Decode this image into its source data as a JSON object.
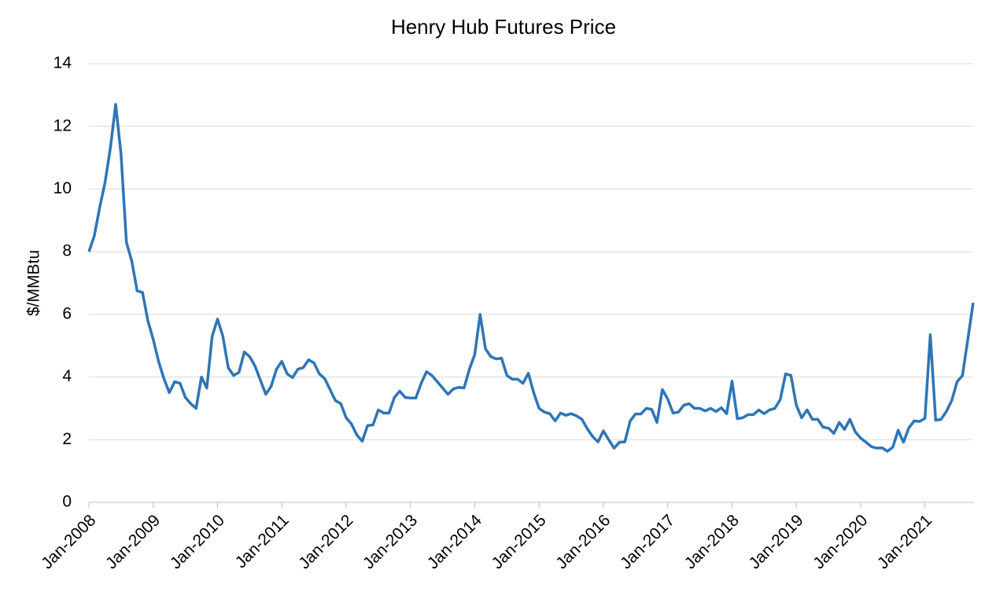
{
  "chart_data": {
    "type": "line",
    "title": "Henry Hub Futures Price",
    "y_label": "$/MMBtu",
    "color": "#2e75b6",
    "grid": true,
    "ylim": [
      0,
      14
    ],
    "yticks": [
      0,
      2,
      4,
      6,
      8,
      10,
      12,
      14
    ],
    "categories": [
      "Jan-2008",
      null,
      null,
      null,
      null,
      null,
      null,
      null,
      null,
      null,
      null,
      null,
      "Jan-2009",
      null,
      null,
      null,
      null,
      null,
      null,
      null,
      null,
      null,
      null,
      null,
      "Jan-2010",
      null,
      null,
      null,
      null,
      null,
      null,
      null,
      null,
      null,
      null,
      null,
      "Jan-2011",
      null,
      null,
      null,
      null,
      null,
      null,
      null,
      null,
      null,
      null,
      null,
      "Jan-2012",
      null,
      null,
      null,
      null,
      null,
      null,
      null,
      null,
      null,
      null,
      null,
      "Jan-2013",
      null,
      null,
      null,
      null,
      null,
      null,
      null,
      null,
      null,
      null,
      null,
      "Jan-2014",
      null,
      null,
      null,
      null,
      null,
      null,
      null,
      null,
      null,
      null,
      null,
      "Jan-2015",
      null,
      null,
      null,
      null,
      null,
      null,
      null,
      null,
      null,
      null,
      null,
      "Jan-2016",
      null,
      null,
      null,
      null,
      null,
      null,
      null,
      null,
      null,
      null,
      null,
      "Jan-2017",
      null,
      null,
      null,
      null,
      null,
      null,
      null,
      null,
      null,
      null,
      null,
      "Jan-2018",
      null,
      null,
      null,
      null,
      null,
      null,
      null,
      null,
      null,
      null,
      null,
      "Jan-2019",
      null,
      null,
      null,
      null,
      null,
      null,
      null,
      null,
      null,
      null,
      null,
      "Jan-2020",
      null,
      null,
      null,
      null,
      null,
      null,
      null,
      null,
      null,
      null,
      null,
      "Jan-2021",
      null,
      null,
      null,
      null,
      null,
      null,
      null,
      null,
      null
    ],
    "values": [
      8.0,
      8.5,
      9.4,
      10.2,
      11.3,
      12.7,
      11.1,
      8.3,
      7.7,
      6.75,
      6.7,
      5.8,
      5.2,
      4.5,
      3.95,
      3.5,
      3.85,
      3.8,
      3.35,
      3.15,
      3.0,
      4.0,
      3.65,
      5.3,
      5.85,
      5.3,
      4.3,
      4.05,
      4.15,
      4.8,
      4.65,
      4.35,
      3.9,
      3.45,
      3.7,
      4.25,
      4.5,
      4.1,
      3.98,
      4.25,
      4.3,
      4.55,
      4.45,
      4.1,
      3.95,
      3.6,
      3.25,
      3.15,
      2.7,
      2.5,
      2.15,
      1.95,
      2.45,
      2.47,
      2.95,
      2.85,
      2.85,
      3.35,
      3.55,
      3.35,
      3.33,
      3.33,
      3.8,
      4.17,
      4.05,
      3.85,
      3.65,
      3.45,
      3.62,
      3.67,
      3.65,
      4.25,
      4.72,
      6.0,
      4.9,
      4.65,
      4.58,
      4.6,
      4.05,
      3.93,
      3.93,
      3.8,
      4.12,
      3.5,
      3.0,
      2.88,
      2.83,
      2.6,
      2.85,
      2.78,
      2.83,
      2.76,
      2.65,
      2.35,
      2.1,
      1.93,
      2.28,
      2.0,
      1.73,
      1.92,
      1.93,
      2.6,
      2.82,
      2.82,
      3.0,
      2.97,
      2.55,
      3.6,
      3.3,
      2.85,
      2.88,
      3.1,
      3.15,
      3.0,
      3.0,
      2.92,
      3.0,
      2.9,
      3.02,
      2.83,
      3.87,
      2.67,
      2.7,
      2.8,
      2.8,
      2.95,
      2.83,
      2.95,
      3.0,
      3.28,
      4.1,
      4.05,
      3.1,
      2.7,
      2.95,
      2.65,
      2.65,
      2.4,
      2.37,
      2.2,
      2.55,
      2.33,
      2.65,
      2.25,
      2.05,
      1.92,
      1.78,
      1.73,
      1.74,
      1.63,
      1.76,
      2.3,
      1.92,
      2.38,
      2.6,
      2.58,
      2.68,
      5.35,
      2.62,
      2.65,
      2.9,
      3.25,
      3.85,
      4.05,
      5.2,
      6.37
    ]
  }
}
